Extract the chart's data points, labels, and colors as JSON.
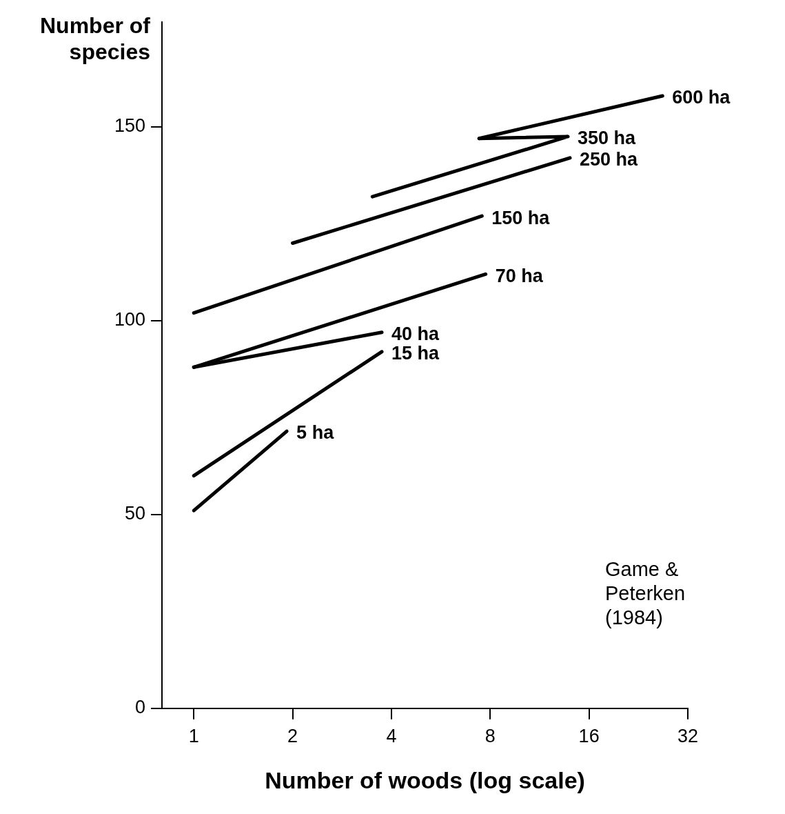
{
  "chart_data": {
    "type": "line",
    "ylabel": "Number of species",
    "xlabel": "Number of woods (log scale)",
    "log": "x",
    "xlim": [
      0.8,
      32
    ],
    "xticks": [
      1,
      2,
      4,
      8,
      16,
      32
    ],
    "ylim": [
      0,
      177
    ],
    "yticks": [
      0,
      50,
      100,
      150
    ],
    "grid": false,
    "legend": false,
    "marker": "none",
    "line_style": "solid",
    "annotations": [
      "Game &\nPeterken\n(1984)"
    ],
    "series": [
      {
        "name": "5 ha",
        "color": "#000000",
        "x": [
          1,
          1.92
        ],
        "values": [
          51,
          71.5
        ]
      },
      {
        "name": "15 ha",
        "color": "#000000",
        "x": [
          1,
          3.74
        ],
        "values": [
          60,
          92
        ]
      },
      {
        "name": "40 ha",
        "color": "#000000",
        "x": [
          1,
          3.74
        ],
        "values": [
          88,
          97
        ]
      },
      {
        "name": "70 ha",
        "color": "#000000",
        "x": [
          1,
          7.75
        ],
        "values": [
          88,
          112
        ]
      },
      {
        "name": "150 ha",
        "color": "#000000",
        "x": [
          1,
          7.55
        ],
        "values": [
          102,
          127
        ]
      },
      {
        "name": "250 ha",
        "color": "#000000",
        "x": [
          2,
          14
        ],
        "values": [
          120,
          142
        ]
      },
      {
        "name": "350 ha",
        "color": "#000000",
        "x": [
          3.5,
          13.8,
          7.4
        ],
        "values": [
          132,
          147.5,
          147
        ]
      },
      {
        "name": "600 ha",
        "color": "#000000",
        "x": [
          7.4,
          26.8
        ],
        "values": [
          147,
          158
        ]
      }
    ]
  }
}
